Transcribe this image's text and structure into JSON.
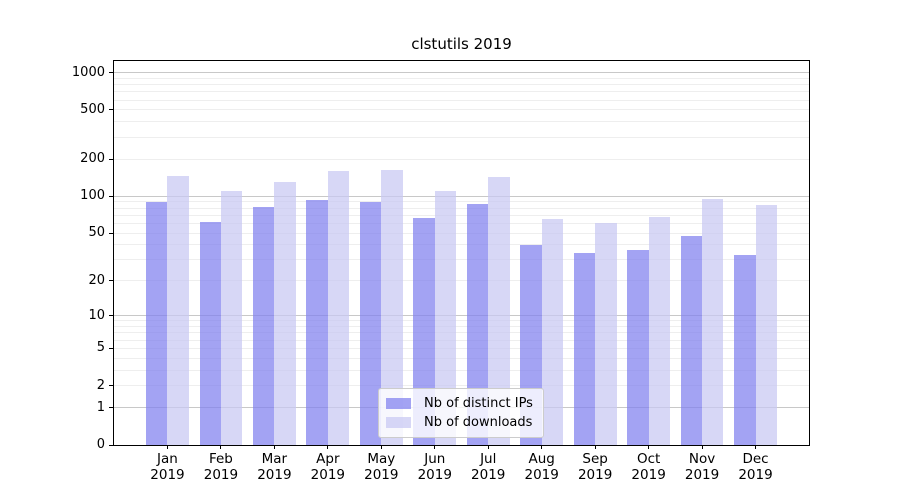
{
  "chart_data": {
    "type": "bar",
    "title": "clstutils 2019",
    "months": [
      "Jan",
      "Feb",
      "Mar",
      "Apr",
      "May",
      "Jun",
      "Jul",
      "Aug",
      "Sep",
      "Oct",
      "Nov",
      "Dec"
    ],
    "year": "2019",
    "categories": [
      "Jan 2019",
      "Feb 2019",
      "Mar 2019",
      "Apr 2019",
      "May 2019",
      "Jun 2019",
      "Jul 2019",
      "Aug 2019",
      "Sep 2019",
      "Oct 2019",
      "Nov 2019",
      "Dec 2019"
    ],
    "series": [
      {
        "name": "Nb of distinct IPs",
        "color": "rgba(127,127,238,0.72)",
        "values": [
          89,
          62,
          82,
          94,
          90,
          67,
          87,
          40,
          34,
          36,
          47,
          33
        ]
      },
      {
        "name": "Nb of downloads",
        "color": "rgba(199,199,243,0.72)",
        "values": [
          146,
          111,
          131,
          160,
          163,
          110,
          142,
          65,
          61,
          68,
          95,
          85
        ]
      }
    ],
    "yscale": "log1p",
    "yticks": [
      0,
      1,
      2,
      5,
      10,
      20,
      50,
      100,
      200,
      500,
      1000
    ],
    "ylim": [
      0,
      1240
    ],
    "xlabel": "",
    "ylabel": "",
    "grid": true,
    "legend_position": "lower-center"
  },
  "colors": {
    "bar_distinct_ips": "rgba(127,127,238,0.72)",
    "bar_downloads": "rgba(199,199,243,0.72)",
    "major_grid": "#c8c8c8",
    "minor_grid": "#eeeeee",
    "spine": "#000000",
    "background": "#ffffff"
  }
}
